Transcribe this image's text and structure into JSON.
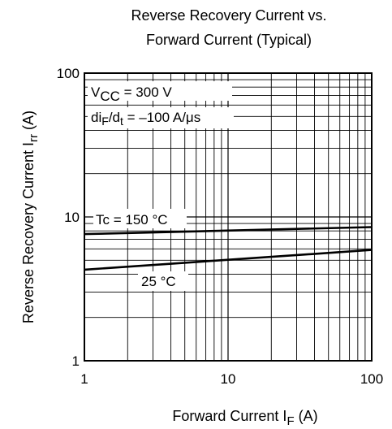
{
  "chart_data": {
    "type": "line",
    "title": "Reverse Recovery Current vs.",
    "subtitle": "Forward Current  (Typical)",
    "xlabel": {
      "text": "Forward  Current",
      "symbol": "I",
      "symbol_sub": "F",
      "unit": "(A)"
    },
    "ylabel": {
      "text": "Reverse Recovery Current",
      "symbol": "I",
      "symbol_sub": "rr",
      "unit": "(A)"
    },
    "x_scale": "log",
    "y_scale": "log",
    "xlim": [
      1,
      100
    ],
    "ylim": [
      1,
      100
    ],
    "x_ticks": [
      {
        "value": 1,
        "label": "1"
      },
      {
        "value": 10,
        "label": "10"
      },
      {
        "value": 100,
        "label": "100"
      }
    ],
    "y_ticks": [
      {
        "value": 1,
        "label": "1"
      },
      {
        "value": 10,
        "label": "10"
      },
      {
        "value": 100,
        "label": "100"
      }
    ],
    "grid": true,
    "conditions": {
      "vcc_main": "V",
      "vcc_sub": "CC",
      "vcc_value": " = 300 V",
      "di_d": "d",
      "di_i": "i",
      "di_sub1": "F",
      "di_slash": "/d",
      "di_sub2": "t",
      "di_value": " = –100 A/μs"
    },
    "series": [
      {
        "label": "Tc = 150 °C",
        "x": [
          1,
          100
        ],
        "y": [
          7.6,
          8.5
        ]
      },
      {
        "label": "25 °C",
        "x": [
          1,
          100
        ],
        "y": [
          4.3,
          5.9
        ]
      }
    ]
  }
}
